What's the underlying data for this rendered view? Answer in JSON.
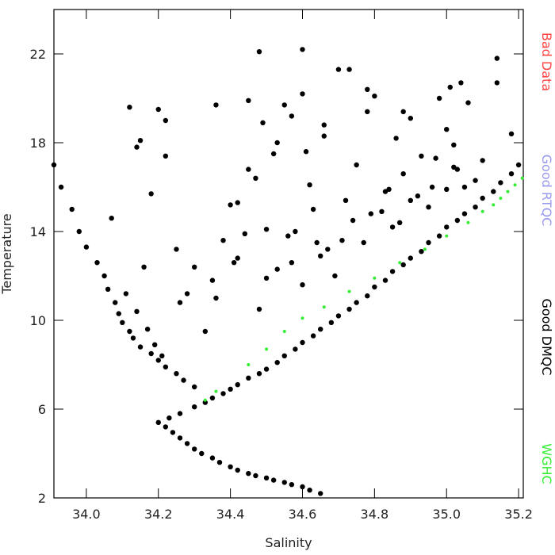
{
  "chart_data": {
    "type": "scatter",
    "x_label": "Salinity",
    "y_label": "Temperature",
    "xlim": [
      33.91,
      35.213
    ],
    "ylim": [
      2,
      24
    ],
    "xticks": [
      {
        "value": 34.0,
        "label": "34.0"
      },
      {
        "value": 34.2,
        "label": "34.2"
      },
      {
        "value": 34.4,
        "label": "34.4"
      },
      {
        "value": 34.6,
        "label": "34.6"
      },
      {
        "value": 34.8,
        "label": "34.8"
      },
      {
        "value": 35.0,
        "label": "35.0"
      },
      {
        "value": 35.2,
        "label": "35.2"
      }
    ],
    "yticks": [
      2,
      6,
      10,
      14,
      18,
      22
    ],
    "grid": false,
    "series": [
      {
        "name": "Bad Data",
        "color": "#ff4444",
        "x": [],
        "values": []
      },
      {
        "name": "Good RTQC",
        "color": "#9999ee",
        "x": [],
        "values": []
      },
      {
        "name": "Good DMQC",
        "color": "#000000",
        "x": [
          34.65,
          34.62,
          34.6,
          34.57,
          34.55,
          34.52,
          34.5,
          34.47,
          34.45,
          34.42,
          34.4,
          34.37,
          34.35,
          34.32,
          34.3,
          34.28,
          34.26,
          34.24,
          34.22,
          34.2,
          34.23,
          34.26,
          34.3,
          34.33,
          34.35,
          34.38,
          34.4,
          34.42,
          34.45,
          34.48,
          34.5,
          34.53,
          34.55,
          34.58,
          34.6,
          34.63,
          34.65,
          34.68,
          34.7,
          34.73,
          34.75,
          34.78,
          34.8,
          34.83,
          34.85,
          34.88,
          34.9,
          34.93,
          34.95,
          34.98,
          35.0,
          35.03,
          35.05,
          35.08,
          35.1,
          35.13,
          35.15,
          35.18,
          35.2,
          34.3,
          34.27,
          34.25,
          34.22,
          34.2,
          34.18,
          34.15,
          34.13,
          34.12,
          34.1,
          34.09,
          34.08,
          34.06,
          34.05,
          34.03,
          34.0,
          33.98,
          33.96,
          33.93,
          33.91,
          34.17,
          34.14,
          34.11,
          34.19,
          34.16,
          34.07,
          34.21,
          34.12,
          34.14,
          34.2,
          34.22,
          34.18,
          34.25,
          34.3,
          34.35,
          34.38,
          34.4,
          34.42,
          34.45,
          34.47,
          34.5,
          34.52,
          34.55,
          34.57,
          34.6,
          34.62,
          34.64,
          34.66,
          34.7,
          34.72,
          34.75,
          34.78,
          34.8,
          34.83,
          34.86,
          34.88,
          34.9,
          34.93,
          34.96,
          34.98,
          35.0,
          35.02,
          35.04,
          35.06,
          35.1,
          35.14,
          35.18,
          34.26,
          34.33,
          34.36,
          34.44,
          34.48,
          34.53,
          34.58,
          34.6,
          34.63,
          34.67,
          34.69,
          34.74,
          34.77,
          34.82,
          34.85,
          34.9,
          34.95,
          35.0,
          35.05,
          35.08,
          34.28,
          34.41,
          34.5,
          34.56,
          34.65,
          34.71,
          34.79,
          34.87,
          34.92,
          35.03,
          34.48,
          34.49,
          34.6,
          34.61,
          34.73,
          34.78,
          35.01,
          35.02,
          35.14,
          34.45,
          34.53,
          34.57,
          34.66,
          34.84,
          34.97,
          34.15,
          34.22,
          34.36,
          34.42,
          34.88
        ],
        "values": [
          2.2,
          2.35,
          2.5,
          2.6,
          2.7,
          2.8,
          2.9,
          3.0,
          3.1,
          3.25,
          3.4,
          3.6,
          3.8,
          4.0,
          4.2,
          4.45,
          4.7,
          4.95,
          5.2,
          5.4,
          5.6,
          5.8,
          6.1,
          6.3,
          6.5,
          6.7,
          6.9,
          7.1,
          7.4,
          7.6,
          7.8,
          8.1,
          8.4,
          8.7,
          9.0,
          9.3,
          9.6,
          9.9,
          10.2,
          10.5,
          10.8,
          11.1,
          11.5,
          11.8,
          12.2,
          12.5,
          12.8,
          13.1,
          13.5,
          13.8,
          14.2,
          14.5,
          14.8,
          15.1,
          15.5,
          15.8,
          16.2,
          16.6,
          17.0,
          7.0,
          7.3,
          7.6,
          7.9,
          8.2,
          8.5,
          8.8,
          9.2,
          9.5,
          9.9,
          10.3,
          10.8,
          11.4,
          12.0,
          12.6,
          13.3,
          14.0,
          15.0,
          16.0,
          17.0,
          9.6,
          10.4,
          11.2,
          8.9,
          12.4,
          14.6,
          8.4,
          19.6,
          17.8,
          19.5,
          17.4,
          15.7,
          13.2,
          12.4,
          11.8,
          13.6,
          15.2,
          12.8,
          19.9,
          16.4,
          14.1,
          17.5,
          19.7,
          12.6,
          22.2,
          16.1,
          13.5,
          18.8,
          21.3,
          15.4,
          17.0,
          19.4,
          20.1,
          15.8,
          18.2,
          16.6,
          19.1,
          17.4,
          16.0,
          20.0,
          18.6,
          16.9,
          20.7,
          19.8,
          17.2,
          21.8,
          18.4,
          10.8,
          9.5,
          11.0,
          13.9,
          10.5,
          12.3,
          14.0,
          11.6,
          15.0,
          13.2,
          12.0,
          14.5,
          13.5,
          14.9,
          14.2,
          15.4,
          15.1,
          15.9,
          16.0,
          16.3,
          11.2,
          12.6,
          11.9,
          13.8,
          12.9,
          13.6,
          14.8,
          14.4,
          15.6,
          16.8,
          22.1,
          18.9,
          20.2,
          17.6,
          21.3,
          20.4,
          20.5,
          17.9,
          20.7,
          16.8,
          18.0,
          19.2,
          18.3,
          15.9,
          17.3,
          18.1,
          19.0,
          19.7,
          15.3,
          19.4
        ]
      },
      {
        "name": "WGHC",
        "color": "#33ee33",
        "x": [
          34.33,
          34.36,
          34.45,
          34.5,
          34.55,
          34.6,
          34.66,
          34.73,
          34.8,
          34.87,
          34.94,
          35.0,
          35.06,
          35.1,
          35.13,
          35.15,
          35.17,
          35.19,
          35.21
        ],
        "values": [
          6.4,
          6.8,
          8.0,
          8.7,
          9.5,
          10.1,
          10.6,
          11.3,
          11.9,
          12.6,
          13.2,
          13.8,
          14.4,
          14.9,
          15.2,
          15.5,
          15.8,
          16.1,
          16.4
        ]
      }
    ]
  }
}
